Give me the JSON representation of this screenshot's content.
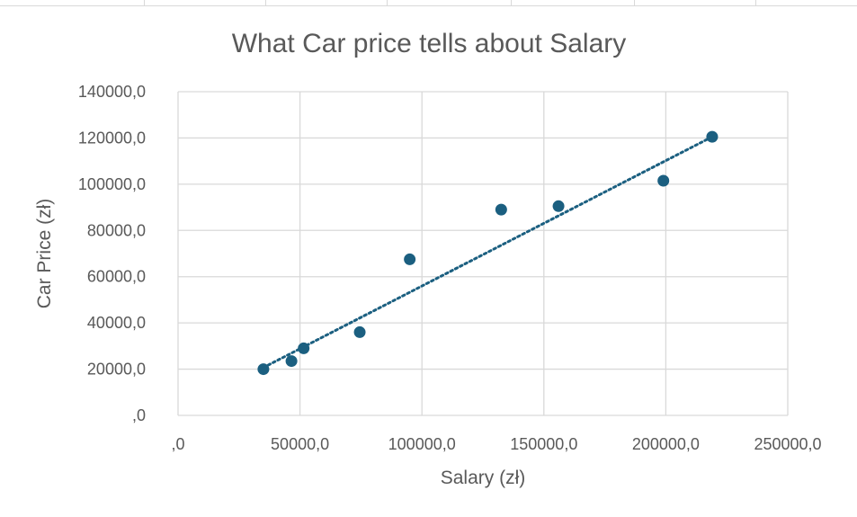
{
  "chart_data": {
    "type": "scatter",
    "title": "What Car price tells about Salary",
    "xlabel": "Salary (zł)",
    "ylabel": "Car Price (zł)",
    "xlim": [
      0,
      250000
    ],
    "ylim": [
      0,
      140000
    ],
    "x_ticks": [
      ",0",
      "50000,0",
      "100000,0",
      "150000,0",
      "200000,0",
      "250000,0"
    ],
    "y_ticks": [
      ",0",
      "20000,0",
      "40000,0",
      "60000,0",
      "80000,0",
      "100000,0",
      "120000,0",
      "140000,0"
    ],
    "grid": true,
    "legend": "none",
    "series": [
      {
        "x": [
          35000,
          46500,
          51500,
          74500,
          95000,
          132500,
          156000,
          199000,
          219000
        ],
        "y": [
          20000,
          23500,
          29000,
          36000,
          67500,
          89000,
          90500,
          101500,
          120500
        ]
      }
    ],
    "trendline": {
      "style": "dotted",
      "x": [
        35000,
        219000
      ],
      "y": [
        20700,
        120500
      ]
    },
    "colors": {
      "marker": "#1b5f80",
      "trendline": "#1b5f80",
      "grid": "#d9d9d9",
      "text": "#595959"
    }
  }
}
